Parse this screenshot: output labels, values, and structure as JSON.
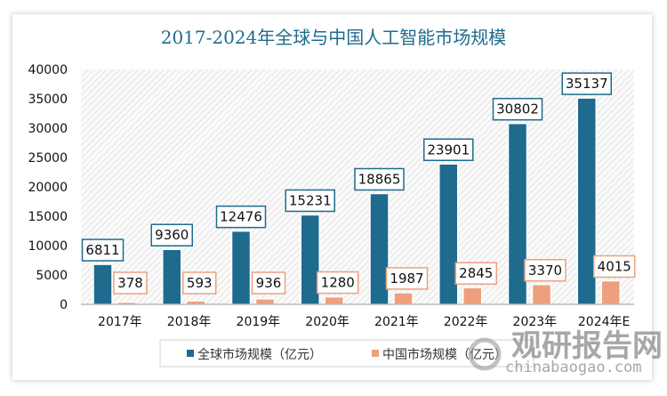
{
  "chart_data": {
    "type": "bar",
    "title": "2017-2024年全球与中国人工智能市场规模",
    "categories": [
      "2017年",
      "2018年",
      "2019年",
      "2020年",
      "2021年",
      "2022年",
      "2023年",
      "2024年E"
    ],
    "series": [
      {
        "name": "全球市场规模（亿元）",
        "color": "#1f6b8e",
        "values": [
          6811,
          9360,
          12476,
          15231,
          18865,
          23901,
          30802,
          35137
        ]
      },
      {
        "name": "中国市场规模（亿元）",
        "color": "#ee9f7e",
        "values": [
          378,
          593,
          936,
          1280,
          1987,
          2845,
          3370,
          4015
        ]
      }
    ],
    "yticks": [
      0,
      5000,
      10000,
      15000,
      20000,
      25000,
      30000,
      35000,
      40000
    ],
    "ylim": [
      0,
      40000
    ],
    "xlabel": "",
    "ylabel": "",
    "legend": "bottom",
    "grid": false,
    "plot_background": "diagonal-hatch",
    "data_labels": true
  },
  "watermark": {
    "logo_text": "观研报告网",
    "logo_url_text": "chinabaogao.com"
  }
}
